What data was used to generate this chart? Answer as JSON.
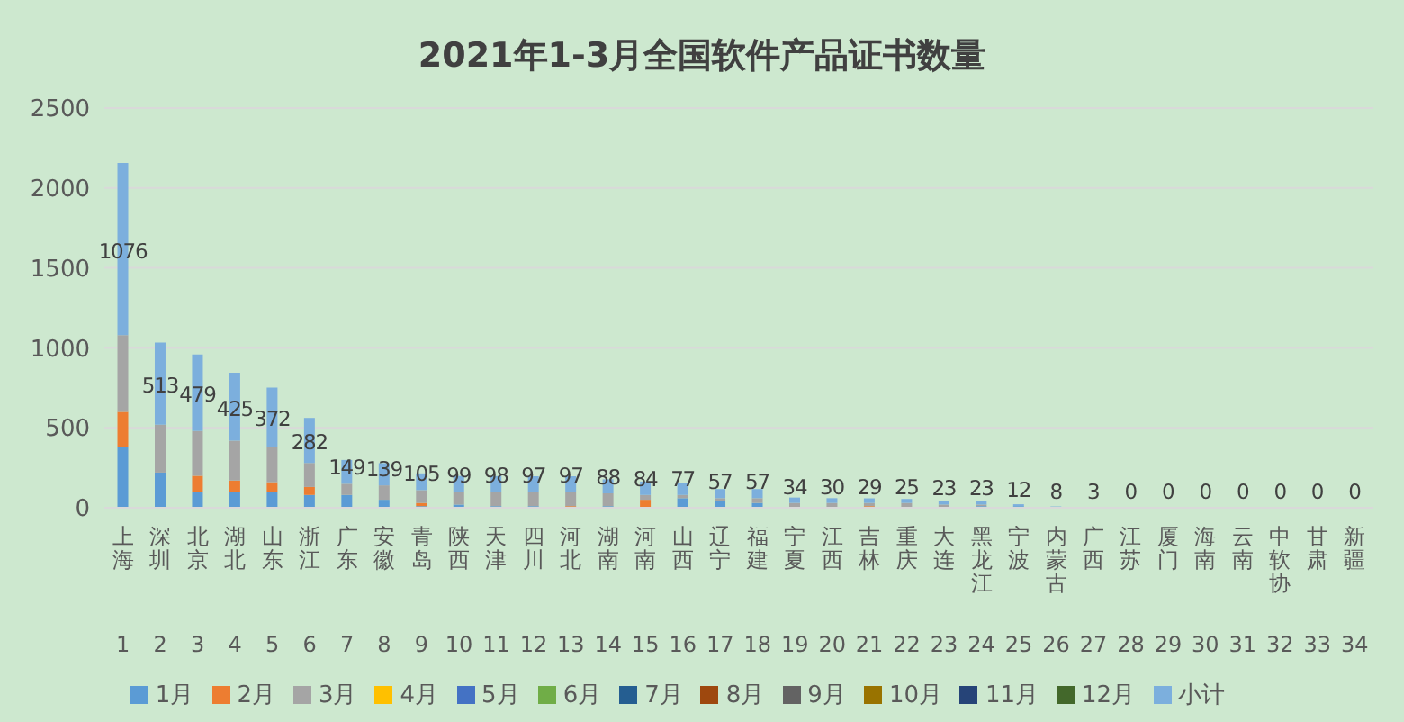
{
  "chart_data": {
    "type": "bar",
    "title": "2021年1-3月全国软件产品证书数量",
    "stacked": true,
    "grid": "y",
    "legend": "bottom",
    "ylim": [
      0,
      2500
    ],
    "yticks": [
      0,
      500,
      1000,
      1500,
      2000,
      2500
    ],
    "categories": [
      "上海\n1",
      "深圳\n2",
      "北京\n3",
      "湖北\n4",
      "山东\n5",
      "浙江\n6",
      "广东\n7",
      "安徽\n8",
      "青岛\n9",
      "陕西\n10",
      "天津\n11",
      "四川\n12",
      "河北\n13",
      "湖南\n14",
      "河南\n15",
      "山西\n16",
      "辽宁\n17",
      "福建\n18",
      "宁夏\n19",
      "江西\n20",
      "吉林\n21",
      "重庆\n22",
      "大连\n23",
      "黑龙江\n24",
      "宁波\n25",
      "内蒙古\n26",
      "广西\n27",
      "江苏\n28",
      "厦门\n29",
      "海南\n30",
      "云南\n31",
      "中软协\n32",
      "甘肃\n33",
      "新疆\n34"
    ],
    "series": [
      {
        "name": "1月",
        "color": "#5b9bd5",
        "values": [
          380,
          220,
          100,
          100,
          100,
          80,
          80,
          50,
          10,
          20,
          10,
          10,
          0,
          10,
          0,
          60,
          40,
          30,
          0,
          0,
          0,
          0,
          0,
          10,
          10,
          0,
          0,
          0,
          0,
          0,
          0,
          0,
          0,
          0
        ]
      },
      {
        "name": "2月",
        "color": "#ed7d31",
        "values": [
          220,
          0,
          100,
          70,
          60,
          50,
          0,
          0,
          20,
          0,
          0,
          0,
          10,
          0,
          50,
          0,
          0,
          0,
          0,
          0,
          10,
          0,
          0,
          0,
          0,
          0,
          0,
          0,
          0,
          0,
          0,
          0,
          0,
          0
        ]
      },
      {
        "name": "3月",
        "color": "#a5a5a5",
        "values": [
          480,
          300,
          280,
          250,
          220,
          150,
          70,
          90,
          80,
          80,
          90,
          90,
          90,
          80,
          30,
          20,
          20,
          30,
          30,
          30,
          20,
          30,
          20,
          10,
          0,
          null,
          0,
          0,
          0,
          0,
          0,
          0,
          0,
          0
        ]
      },
      {
        "name": "4月",
        "color": "#ffc000",
        "values": [
          0,
          0,
          0,
          0,
          0,
          0,
          0,
          0,
          0,
          0,
          0,
          0,
          0,
          0,
          0,
          0,
          0,
          0,
          0,
          0,
          0,
          0,
          0,
          0,
          0,
          0,
          0,
          0,
          0,
          0,
          0,
          0,
          0,
          0
        ]
      },
      {
        "name": "5月",
        "color": "#4472c4",
        "values": [
          0,
          0,
          0,
          0,
          0,
          0,
          0,
          0,
          0,
          0,
          0,
          0,
          0,
          0,
          0,
          0,
          0,
          0,
          0,
          0,
          0,
          0,
          0,
          0,
          0,
          0,
          0,
          0,
          0,
          0,
          0,
          0,
          0,
          0
        ]
      },
      {
        "name": "6月",
        "color": "#70ad47",
        "values": [
          0,
          0,
          0,
          0,
          0,
          0,
          0,
          0,
          0,
          0,
          0,
          0,
          0,
          0,
          0,
          0,
          0,
          0,
          0,
          0,
          0,
          0,
          0,
          0,
          0,
          0,
          0,
          0,
          0,
          0,
          0,
          0,
          0,
          0
        ]
      },
      {
        "name": "7月",
        "color": "#255e91",
        "values": [
          0,
          0,
          0,
          0,
          0,
          0,
          0,
          0,
          0,
          0,
          0,
          0,
          0,
          0,
          0,
          0,
          0,
          0,
          0,
          0,
          0,
          0,
          0,
          0,
          0,
          0,
          0,
          0,
          0,
          0,
          0,
          0,
          0,
          0
        ]
      },
      {
        "name": "8月",
        "color": "#9e480e",
        "values": [
          0,
          0,
          0,
          0,
          0,
          0,
          0,
          0,
          0,
          0,
          0,
          0,
          0,
          0,
          0,
          0,
          0,
          0,
          0,
          0,
          0,
          0,
          0,
          0,
          0,
          0,
          0,
          0,
          0,
          0,
          0,
          0,
          0,
          0
        ]
      },
      {
        "name": "9月",
        "color": "#636363",
        "values": [
          0,
          0,
          0,
          0,
          0,
          0,
          0,
          0,
          0,
          0,
          0,
          0,
          0,
          0,
          0,
          0,
          0,
          0,
          0,
          0,
          0,
          0,
          0,
          0,
          0,
          0,
          0,
          0,
          0,
          0,
          0,
          0,
          0,
          0
        ]
      },
      {
        "name": "10月",
        "color": "#997300",
        "values": [
          0,
          0,
          0,
          0,
          0,
          0,
          0,
          0,
          0,
          0,
          0,
          0,
          0,
          0,
          0,
          0,
          0,
          0,
          0,
          0,
          0,
          0,
          0,
          0,
          0,
          0,
          0,
          0,
          0,
          0,
          0,
          0,
          0,
          0
        ]
      },
      {
        "name": "11月",
        "color": "#264478",
        "values": [
          0,
          0,
          0,
          0,
          0,
          0,
          0,
          0,
          0,
          0,
          0,
          0,
          0,
          0,
          0,
          0,
          0,
          0,
          0,
          0,
          0,
          0,
          0,
          0,
          0,
          0,
          0,
          0,
          0,
          0,
          0,
          0,
          0,
          0
        ]
      },
      {
        "name": "12月",
        "color": "#43682b",
        "values": [
          0,
          0,
          0,
          0,
          0,
          0,
          0,
          0,
          0,
          0,
          0,
          0,
          0,
          0,
          0,
          0,
          0,
          0,
          0,
          0,
          0,
          0,
          0,
          0,
          0,
          0,
          0,
          0,
          0,
          0,
          0,
          0,
          0,
          0
        ]
      },
      {
        "name": "小计",
        "color": "#7cafdd",
        "values": [
          1076,
          513,
          479,
          425,
          372,
          282,
          149,
          139,
          105,
          99,
          98,
          97,
          97,
          88,
          84,
          77,
          57,
          57,
          34,
          30,
          29,
          25,
          23,
          23,
          12,
          8,
          3,
          0,
          0,
          0,
          0,
          0,
          0,
          0
        ],
        "value_labels": [
          "1076",
          "513",
          "479",
          "425",
          "372",
          "282",
          "149",
          "139",
          "105",
          "99",
          "98",
          "97",
          "97",
          "88",
          "84",
          "77",
          "57",
          "57",
          "34",
          "30",
          "29",
          "25",
          "23",
          "23",
          "12",
          "8",
          "3",
          "0",
          "0",
          "0",
          "0",
          "0",
          "0",
          "0"
        ]
      }
    ]
  }
}
